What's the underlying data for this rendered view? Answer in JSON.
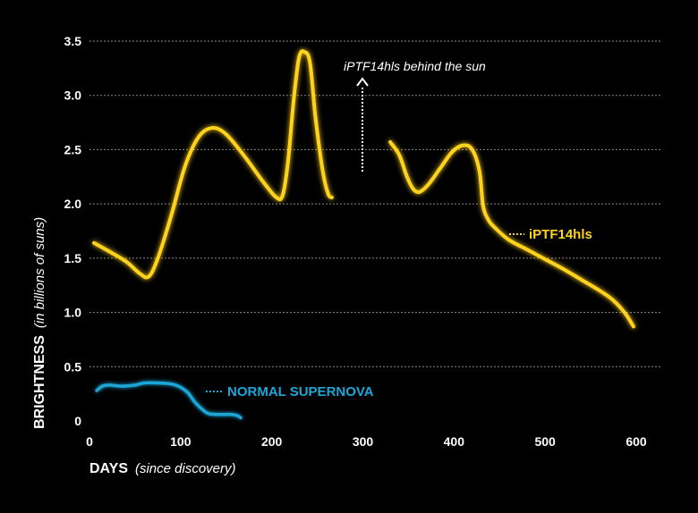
{
  "chart_data": {
    "type": "line",
    "xlabel": "DAYS",
    "xlabel_sub": "(since discovery)",
    "ylabel": "BRIGHTNESS",
    "ylabel_sub": "(in billions of suns)",
    "xlim": [
      0,
      600
    ],
    "ylim": [
      0,
      3.5
    ],
    "x_ticks": [
      "0",
      "100",
      "200",
      "300",
      "400",
      "500",
      "600"
    ],
    "y_ticks": [
      "0",
      "0.5",
      "1.0",
      "1.5",
      "2.0",
      "2.5",
      "3.0",
      "3.5"
    ],
    "grid": "horizontal dotted",
    "series": [
      {
        "name": "iPTF14hls",
        "color": "#FFD21F",
        "segments": [
          [
            [
              5,
              1.64
            ],
            [
              20,
              1.57
            ],
            [
              40,
              1.47
            ],
            [
              55,
              1.36
            ],
            [
              65,
              1.33
            ],
            [
              75,
              1.5
            ],
            [
              90,
              1.9
            ],
            [
              105,
              2.35
            ],
            [
              120,
              2.62
            ],
            [
              135,
              2.7
            ],
            [
              150,
              2.64
            ],
            [
              170,
              2.44
            ],
            [
              190,
              2.21
            ],
            [
              205,
              2.06
            ],
            [
              212,
              2.08
            ],
            [
              218,
              2.4
            ],
            [
              224,
              2.95
            ],
            [
              230,
              3.35
            ],
            [
              236,
              3.4
            ],
            [
              242,
              3.3
            ],
            [
              248,
              2.8
            ],
            [
              256,
              2.3
            ],
            [
              262,
              2.09
            ],
            [
              266,
              2.06
            ]
          ],
          [
            [
              330,
              2.57
            ],
            [
              340,
              2.45
            ],
            [
              348,
              2.26
            ],
            [
              355,
              2.14
            ],
            [
              362,
              2.11
            ],
            [
              372,
              2.18
            ],
            [
              385,
              2.33
            ],
            [
              398,
              2.48
            ],
            [
              410,
              2.54
            ],
            [
              420,
              2.5
            ],
            [
              428,
              2.3
            ],
            [
              432,
              1.98
            ],
            [
              438,
              1.85
            ],
            [
              445,
              1.78
            ],
            [
              460,
              1.67
            ],
            [
              480,
              1.58
            ],
            [
              500,
              1.49
            ],
            [
              520,
              1.4
            ],
            [
              540,
              1.3
            ],
            [
              560,
              1.2
            ],
            [
              575,
              1.11
            ],
            [
              588,
              0.99
            ],
            [
              597,
              0.87
            ]
          ]
        ]
      },
      {
        "name": "NORMAL SUPERNOVA",
        "color": "#1EA6D8",
        "segments": [
          [
            [
              8,
              0.28
            ],
            [
              14,
              0.32
            ],
            [
              22,
              0.33
            ],
            [
              35,
              0.32
            ],
            [
              50,
              0.33
            ],
            [
              60,
              0.35
            ],
            [
              75,
              0.35
            ],
            [
              90,
              0.34
            ],
            [
              100,
              0.31
            ],
            [
              108,
              0.26
            ],
            [
              115,
              0.18
            ],
            [
              122,
              0.12
            ],
            [
              130,
              0.07
            ],
            [
              140,
              0.06
            ],
            [
              155,
              0.06
            ],
            [
              162,
              0.05
            ],
            [
              166,
              0.03
            ]
          ]
        ]
      }
    ],
    "annotations": [
      {
        "text": "iPTF14hls behind the sun"
      }
    ]
  }
}
